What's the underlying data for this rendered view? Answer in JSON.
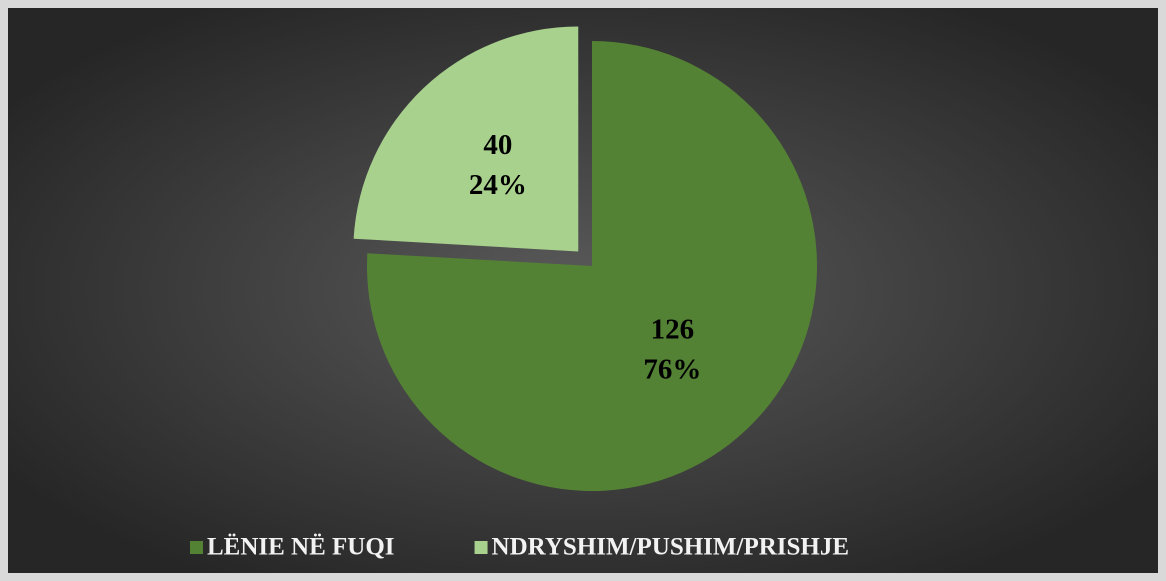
{
  "chart_data": {
    "type": "pie",
    "categories": [
      "LËNIE NË FUQI",
      "NDRYSHIM/PUSHIM/PRISHJE"
    ],
    "values": [
      126,
      40
    ],
    "percent_labels": [
      "76%",
      "24%"
    ],
    "colors": [
      "#548235",
      "#a9d18e"
    ],
    "exploded": [
      false,
      true
    ],
    "legend": "bottom"
  }
}
